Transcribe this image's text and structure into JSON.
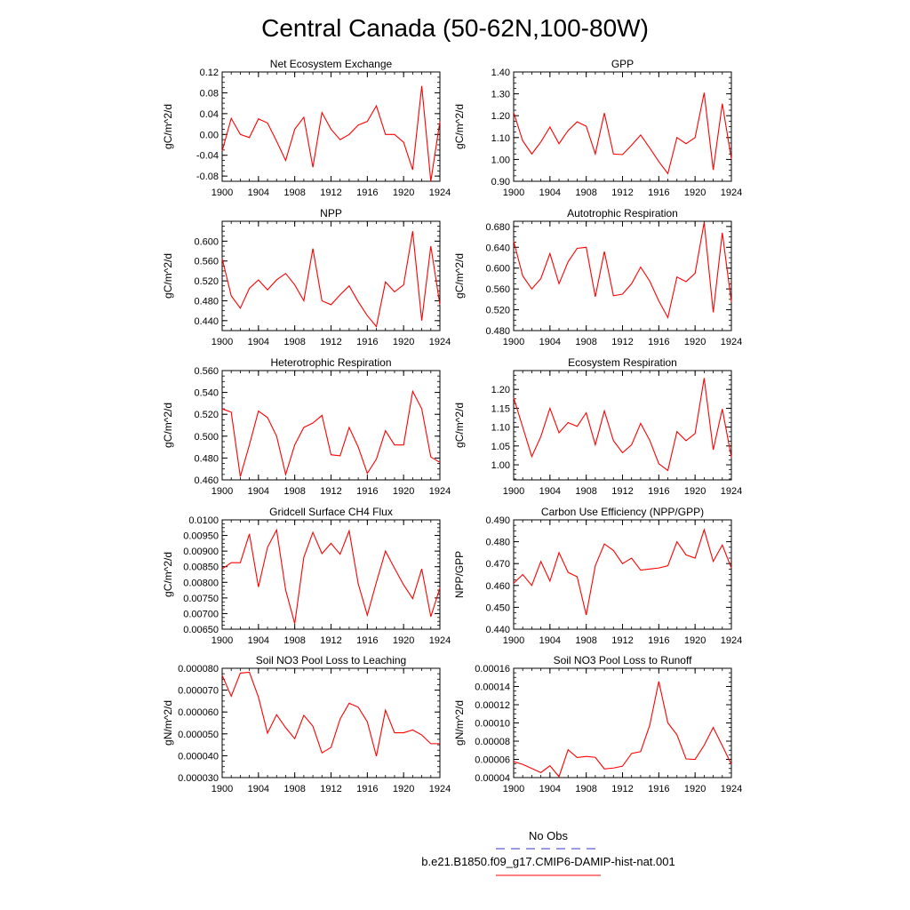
{
  "title": "Central Canada (50-62N,100-80W)",
  "legend": {
    "obs_label": "No Obs",
    "obs_color": "#3333cc",
    "case_label": "b.e21.B1850.f09_g17.CMIP6-DAMIP-hist-nat.001",
    "case_color": "#ff0000"
  },
  "line_color": "#ff0000",
  "chart_data": [
    {
      "type": "line",
      "title": "Net Ecosystem Exchange",
      "ylabel": "gC/m^2/d",
      "xlim": [
        1900,
        1924
      ],
      "ylim": [
        -0.09,
        0.12
      ],
      "xticks": [
        "1900",
        "1904",
        "1908",
        "1912",
        "1916",
        "1920",
        "1924"
      ],
      "yticks": [
        "-0.08",
        "-0.04",
        "0.00",
        "0.04",
        "0.08",
        "0.12"
      ],
      "x": [
        1900,
        1901,
        1902,
        1903,
        1904,
        1905,
        1906,
        1907,
        1908,
        1909,
        1910,
        1911,
        1912,
        1913,
        1914,
        1915,
        1916,
        1917,
        1918,
        1919,
        1920,
        1921,
        1922,
        1923,
        1924
      ],
      "values": [
        -0.032,
        0.031,
        0.0,
        -0.006,
        0.03,
        0.022,
        -0.013,
        -0.05,
        0.01,
        0.033,
        -0.063,
        0.042,
        0.01,
        -0.01,
        0.0,
        0.018,
        0.025,
        0.055,
        0.0,
        0.0,
        -0.015,
        -0.068,
        0.093,
        -0.09,
        0.025
      ]
    },
    {
      "type": "line",
      "title": "GPP",
      "ylabel": "gC/m^2/d",
      "xlim": [
        1900,
        1924
      ],
      "ylim": [
        0.9,
        1.4
      ],
      "xticks": [
        "1900",
        "1904",
        "1908",
        "1912",
        "1916",
        "1920",
        "1924"
      ],
      "yticks": [
        "0.90",
        "1.00",
        "1.10",
        "1.20",
        "1.30",
        "1.40"
      ],
      "x": [
        1900,
        1901,
        1902,
        1903,
        1904,
        1905,
        1906,
        1907,
        1908,
        1909,
        1910,
        1911,
        1912,
        1913,
        1914,
        1915,
        1916,
        1917,
        1918,
        1919,
        1920,
        1921,
        1922,
        1923,
        1924
      ],
      "values": [
        1.215,
        1.085,
        1.025,
        1.08,
        1.148,
        1.072,
        1.132,
        1.172,
        1.152,
        1.025,
        1.212,
        1.025,
        1.022,
        1.065,
        1.112,
        1.052,
        0.99,
        0.935,
        1.1,
        1.072,
        1.1,
        1.305,
        0.952,
        1.255,
        1.002
      ]
    },
    {
      "type": "line",
      "title": "NPP",
      "ylabel": "gC/m^2/d",
      "xlim": [
        1900,
        1924
      ],
      "ylim": [
        0.42,
        0.64
      ],
      "xticks": [
        "1900",
        "1904",
        "1908",
        "1912",
        "1916",
        "1920",
        "1924"
      ],
      "yticks": [
        "0.440",
        "0.480",
        "0.520",
        "0.560",
        "0.600"
      ],
      "x": [
        1900,
        1901,
        1902,
        1903,
        1904,
        1905,
        1906,
        1907,
        1908,
        1909,
        1910,
        1911,
        1912,
        1913,
        1914,
        1915,
        1916,
        1917,
        1918,
        1919,
        1920,
        1921,
        1922,
        1923,
        1924
      ],
      "values": [
        0.565,
        0.49,
        0.465,
        0.505,
        0.522,
        0.502,
        0.522,
        0.535,
        0.512,
        0.48,
        0.585,
        0.48,
        0.472,
        0.492,
        0.51,
        0.478,
        0.45,
        0.428,
        0.518,
        0.498,
        0.512,
        0.62,
        0.44,
        0.59,
        0.472
      ]
    },
    {
      "type": "line",
      "title": "Autotrophic Respiration",
      "ylabel": "gC/m^2/d",
      "xlim": [
        1900,
        1924
      ],
      "ylim": [
        0.48,
        0.69
      ],
      "xticks": [
        "1900",
        "1904",
        "1908",
        "1912",
        "1916",
        "1920",
        "1924"
      ],
      "yticks": [
        "0.480",
        "0.520",
        "0.560",
        "0.600",
        "0.640",
        "0.680"
      ],
      "x": [
        1900,
        1901,
        1902,
        1903,
        1904,
        1905,
        1906,
        1907,
        1908,
        1909,
        1910,
        1911,
        1912,
        1913,
        1914,
        1915,
        1916,
        1917,
        1918,
        1919,
        1920,
        1921,
        1922,
        1923,
        1924
      ],
      "values": [
        0.652,
        0.585,
        0.56,
        0.58,
        0.628,
        0.57,
        0.612,
        0.638,
        0.64,
        0.545,
        0.632,
        0.547,
        0.55,
        0.57,
        0.602,
        0.575,
        0.537,
        0.505,
        0.583,
        0.574,
        0.59,
        0.688,
        0.515,
        0.668,
        0.535
      ]
    },
    {
      "type": "line",
      "title": "Heterotrophic Respiration",
      "ylabel": "gC/m^2/d",
      "xlim": [
        1900,
        1924
      ],
      "ylim": [
        0.46,
        0.56
      ],
      "xticks": [
        "1900",
        "1904",
        "1908",
        "1912",
        "1916",
        "1920",
        "1924"
      ],
      "yticks": [
        "0.460",
        "0.480",
        "0.500",
        "0.520",
        "0.540",
        "0.560"
      ],
      "x": [
        1900,
        1901,
        1902,
        1903,
        1904,
        1905,
        1906,
        1907,
        1908,
        1909,
        1910,
        1911,
        1912,
        1913,
        1914,
        1915,
        1916,
        1917,
        1918,
        1919,
        1920,
        1921,
        1922,
        1923,
        1924
      ],
      "values": [
        0.525,
        0.522,
        0.463,
        0.492,
        0.523,
        0.517,
        0.5,
        0.465,
        0.492,
        0.508,
        0.512,
        0.519,
        0.483,
        0.482,
        0.508,
        0.49,
        0.466,
        0.479,
        0.505,
        0.492,
        0.492,
        0.541,
        0.525,
        0.481,
        0.476
      ]
    },
    {
      "type": "line",
      "title": "Ecosystem Respiration",
      "ylabel": "gC/m^2/d",
      "xlim": [
        1900,
        1924
      ],
      "ylim": [
        0.96,
        1.25
      ],
      "xticks": [
        "1900",
        "1904",
        "1908",
        "1912",
        "1916",
        "1920",
        "1924"
      ],
      "yticks": [
        "1.00",
        "1.05",
        "1.10",
        "1.15",
        "1.20"
      ],
      "x": [
        1900,
        1901,
        1902,
        1903,
        1904,
        1905,
        1906,
        1907,
        1908,
        1909,
        1910,
        1911,
        1912,
        1913,
        1914,
        1915,
        1916,
        1917,
        1918,
        1919,
        1920,
        1921,
        1922,
        1923,
        1924
      ],
      "values": [
        1.178,
        1.1,
        1.022,
        1.075,
        1.15,
        1.085,
        1.112,
        1.102,
        1.138,
        1.053,
        1.143,
        1.064,
        1.032,
        1.053,
        1.11,
        1.065,
        1.003,
        0.985,
        1.088,
        1.064,
        1.083,
        1.23,
        1.04,
        1.148,
        1.02
      ]
    },
    {
      "type": "line",
      "title": "Gridcell Surface CH4 Flux",
      "ylabel": "gC/m^2/d",
      "xlim": [
        1900,
        1924
      ],
      "ylim": [
        0.0065,
        0.01
      ],
      "xticks": [
        "1900",
        "1904",
        "1908",
        "1912",
        "1916",
        "1920",
        "1924"
      ],
      "yticks": [
        "0.00650",
        "0.00700",
        "0.00750",
        "0.00800",
        "0.00850",
        "0.00900",
        "0.00950",
        "0.0100"
      ],
      "x": [
        1900,
        1901,
        1902,
        1903,
        1904,
        1905,
        1906,
        1907,
        1908,
        1909,
        1910,
        1911,
        1912,
        1913,
        1914,
        1915,
        1916,
        1917,
        1918,
        1919,
        1920,
        1921,
        1922,
        1923,
        1924
      ],
      "values": [
        0.00843,
        0.00863,
        0.00863,
        0.00955,
        0.00785,
        0.00912,
        0.00968,
        0.00775,
        0.00668,
        0.0088,
        0.0096,
        0.00892,
        0.00925,
        0.0089,
        0.00965,
        0.00795,
        0.00695,
        0.008,
        0.009,
        0.00845,
        0.00792,
        0.00748,
        0.00843,
        0.0069,
        0.00782
      ]
    },
    {
      "type": "line",
      "title": "Carbon Use Efficiency (NPP/GPP)",
      "ylabel": "NPP/GPP",
      "xlim": [
        1900,
        1924
      ],
      "ylim": [
        0.44,
        0.49
      ],
      "xticks": [
        "1900",
        "1904",
        "1908",
        "1912",
        "1916",
        "1920",
        "1924"
      ],
      "yticks": [
        "0.440",
        "0.450",
        "0.460",
        "0.470",
        "0.480",
        "0.490"
      ],
      "x": [
        1900,
        1901,
        1902,
        1903,
        1904,
        1905,
        1906,
        1907,
        1908,
        1909,
        1910,
        1911,
        1912,
        1913,
        1914,
        1915,
        1916,
        1917,
        1918,
        1919,
        1920,
        1921,
        1922,
        1923,
        1924
      ],
      "values": [
        0.461,
        0.465,
        0.46,
        0.471,
        0.462,
        0.475,
        0.466,
        0.464,
        0.4465,
        0.469,
        0.479,
        0.476,
        0.47,
        0.4725,
        0.467,
        0.4675,
        0.468,
        0.469,
        0.48,
        0.474,
        0.4725,
        0.4855,
        0.471,
        0.4785,
        0.468
      ]
    },
    {
      "type": "line",
      "title": "Soil NO3 Pool Loss to Leaching",
      "ylabel": "gN/m^2/d",
      "xlim": [
        1900,
        1924
      ],
      "ylim": [
        3e-05,
        8e-05
      ],
      "xticks": [
        "1900",
        "1904",
        "1908",
        "1912",
        "1916",
        "1920",
        "1924"
      ],
      "yticks": [
        "0.000030",
        "0.000040",
        "0.000050",
        "0.000060",
        "0.000070",
        "0.000080"
      ],
      "x": [
        1900,
        1901,
        1902,
        1903,
        1904,
        1905,
        1906,
        1907,
        1908,
        1909,
        1910,
        1911,
        1912,
        1913,
        1914,
        1915,
        1916,
        1917,
        1918,
        1919,
        1920,
        1921,
        1922,
        1923,
        1924
      ],
      "values": [
        7.68e-05,
        6.72e-05,
        7.78e-05,
        7.82e-05,
        6.68e-05,
        5.03e-05,
        5.88e-05,
        5.28e-05,
        4.78e-05,
        5.85e-05,
        5.35e-05,
        4.13e-05,
        4.38e-05,
        5.68e-05,
        6.4e-05,
        6.22e-05,
        5.55e-05,
        3.98e-05,
        6.08e-05,
        5.05e-05,
        5.05e-05,
        5.18e-05,
        4.95e-05,
        4.55e-05,
        4.55e-05
      ]
    },
    {
      "type": "line",
      "title": "Soil NO3 Pool Loss to Runoff",
      "ylabel": "gN/m^2/d",
      "xlim": [
        1900,
        1924
      ],
      "ylim": [
        4e-05,
        0.00016
      ],
      "xticks": [
        "1900",
        "1904",
        "1908",
        "1912",
        "1916",
        "1920",
        "1924"
      ],
      "yticks": [
        "0.00004",
        "0.00006",
        "0.00008",
        "0.00010",
        "0.00012",
        "0.00014",
        "0.00016"
      ],
      "x": [
        1900,
        1901,
        1902,
        1903,
        1904,
        1905,
        1906,
        1907,
        1908,
        1909,
        1910,
        1911,
        1912,
        1913,
        1914,
        1915,
        1916,
        1917,
        1918,
        1919,
        1920,
        1921,
        1922,
        1923,
        1924
      ],
      "values": [
        5.75e-05,
        5.45e-05,
        5e-05,
        4.55e-05,
        5.3e-05,
        4.1e-05,
        7.05e-05,
        6.2e-05,
        6.32e-05,
        6.22e-05,
        4.95e-05,
        5.05e-05,
        5.25e-05,
        6.65e-05,
        6.85e-05,
        9.75e-05,
        0.0001455,
        0.0001,
        8.7e-05,
        6.05e-05,
        6e-05,
        7.55e-05,
        9.5e-05,
        7.5e-05,
        5.45e-05
      ]
    }
  ]
}
